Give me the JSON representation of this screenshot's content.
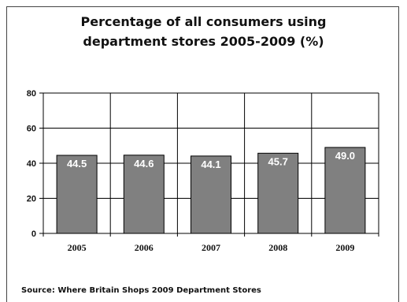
{
  "chart_data": {
    "type": "bar",
    "title_lines": [
      "Percentage of all consumers using",
      "department stores 2005-2009 (%)"
    ],
    "categories": [
      "2005",
      "2006",
      "2007",
      "2008",
      "2009"
    ],
    "values": [
      44.5,
      44.6,
      44.1,
      45.7,
      49.0
    ],
    "value_labels": [
      "44.5",
      "44.6",
      "44.1",
      "45.7",
      "49.0"
    ],
    "ylim": [
      0,
      80
    ],
    "yticks": [
      0,
      20,
      40,
      60,
      80
    ],
    "xlabel": "",
    "ylabel": "",
    "grid": true,
    "bar_color": "#808080",
    "label_color": "#ffffff",
    "source": "Source: Where Britain Shops 2009 Department Stores"
  }
}
